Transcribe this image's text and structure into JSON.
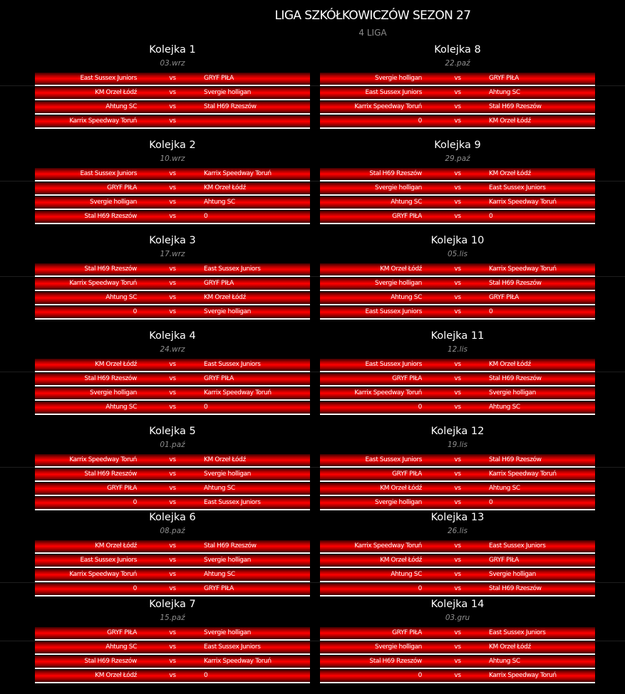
{
  "league": {
    "title": "LIGA SZKÓŁKOWICZÓW SEZON 27",
    "subtitle": "4 LIGA"
  },
  "vs_label": "vs",
  "rounds": [
    {
      "title": "Kolejka 1",
      "date": "03.wrz",
      "matches": [
        {
          "home": "East Sussex Juniors",
          "away": "GRYF PIŁA"
        },
        {
          "home": "KM Orzeł Łódź",
          "away": "Svergie holligan"
        },
        {
          "home": "Ahtung SC",
          "away": "Stal H69 Rzeszów"
        },
        {
          "home": "Karrix Speedway Toruń",
          "away": ""
        }
      ]
    },
    {
      "title": "Kolejka 2",
      "date": "10.wrz",
      "matches": [
        {
          "home": "East Sussex Juniors",
          "away": "Karrix Speedway Toruń"
        },
        {
          "home": "GRYF PIŁA",
          "away": "KM Orzeł Łódź"
        },
        {
          "home": "Svergie holligan",
          "away": "Ahtung SC"
        },
        {
          "home": "Stal H69 Rzeszów",
          "away": "0"
        }
      ]
    },
    {
      "title": "Kolejka 3",
      "date": "17.wrz",
      "matches": [
        {
          "home": "Stal H69 Rzeszów",
          "away": "East Sussex Juniors"
        },
        {
          "home": "Karrix Speedway Toruń",
          "away": "GRYF PIŁA"
        },
        {
          "home": "Ahtung SC",
          "away": "KM Orzeł Łódź"
        },
        {
          "home": "0",
          "away": "Svergie holligan"
        }
      ]
    },
    {
      "title": "Kolejka 4",
      "date": "24.wrz",
      "matches": [
        {
          "home": "KM Orzeł Łódź",
          "away": "East Sussex Juniors"
        },
        {
          "home": "Stal H69 Rzeszów",
          "away": "GRYF PIŁA"
        },
        {
          "home": "Svergie holligan",
          "away": "Karrix Speedway Toruń"
        },
        {
          "home": "Ahtung SC",
          "away": "0"
        }
      ]
    },
    {
      "title": "Kolejka 5",
      "date": "01.paź",
      "matches": [
        {
          "home": "Karrix Speedway Toruń",
          "away": "KM Orzeł Łódź"
        },
        {
          "home": "Stal H69 Rzeszów",
          "away": "Svergie holligan"
        },
        {
          "home": "GRYF PIŁA",
          "away": "Ahtung SC"
        },
        {
          "home": "0",
          "away": "East Sussex Juniors"
        }
      ]
    },
    {
      "title": "Kolejka 6",
      "date": "08.paź",
      "matches": [
        {
          "home": "KM Orzeł Łódź",
          "away": "Stal H69 Rzeszów"
        },
        {
          "home": "East Sussex Juniors",
          "away": "Svergie holligan"
        },
        {
          "home": "Karrix Speedway Toruń",
          "away": "Ahtung SC"
        },
        {
          "home": "0",
          "away": "GRYF PIŁA"
        }
      ]
    },
    {
      "title": "Kolejka 7",
      "date": "15.paź",
      "matches": [
        {
          "home": "GRYF PIŁA",
          "away": "Svergie holligan"
        },
        {
          "home": "Ahtung SC",
          "away": "East Sussex Juniors"
        },
        {
          "home": "Stal H69 Rzeszów",
          "away": "Karrix Speedway Toruń"
        },
        {
          "home": "KM Orzeł Łódź",
          "away": "0"
        }
      ]
    },
    {
      "title": "Kolejka 8",
      "date": "22.paź",
      "matches": [
        {
          "home": "Svergie holligan",
          "away": "GRYF PIŁA"
        },
        {
          "home": "East Sussex Juniors",
          "away": "Ahtung SC"
        },
        {
          "home": "Karrix Speedway Toruń",
          "away": "Stal H69 Rzeszów"
        },
        {
          "home": "0",
          "away": "KM Orzeł Łódź"
        }
      ]
    },
    {
      "title": "Kolejka 9",
      "date": "29.paź",
      "matches": [
        {
          "home": "Stal H69 Rzeszów",
          "away": "KM Orzeł Łódź"
        },
        {
          "home": "Svergie holligan",
          "away": "East Sussex Juniors"
        },
        {
          "home": "Ahtung SC",
          "away": "Karrix Speedway Toruń"
        },
        {
          "home": "GRYF PIŁA",
          "away": "0"
        }
      ]
    },
    {
      "title": "Kolejka 10",
      "date": "05.lis",
      "matches": [
        {
          "home": "KM Orzeł Łódź",
          "away": "Karrix Speedway Toruń"
        },
        {
          "home": "Svergie holligan",
          "away": "Stal H69 Rzeszów"
        },
        {
          "home": "Ahtung SC",
          "away": "GRYF PIŁA"
        },
        {
          "home": "East Sussex Juniors",
          "away": "0"
        }
      ]
    },
    {
      "title": "Kolejka 11",
      "date": "12.lis",
      "matches": [
        {
          "home": "East Sussex Juniors",
          "away": "KM Orzeł Łódź"
        },
        {
          "home": "GRYF PIŁA",
          "away": "Stal H69 Rzeszów"
        },
        {
          "home": "Karrix Speedway Toruń",
          "away": "Svergie holligan"
        },
        {
          "home": "0",
          "away": "Ahtung SC"
        }
      ]
    },
    {
      "title": "Kolejka 12",
      "date": "19.lis",
      "matches": [
        {
          "home": "East Sussex Juniors",
          "away": "Stal H69 Rzeszów"
        },
        {
          "home": "GRYF PIŁA",
          "away": "Karrix Speedway Toruń"
        },
        {
          "home": "KM Orzeł Łódź",
          "away": "Ahtung SC"
        },
        {
          "home": "Svergie holligan",
          "away": "0"
        }
      ]
    },
    {
      "title": "Kolejka 13",
      "date": "26.lis",
      "matches": [
        {
          "home": "Karrix Speedway Toruń",
          "away": "East Sussex Juniors"
        },
        {
          "home": "KM Orzeł Łódź",
          "away": "GRYF PIŁA"
        },
        {
          "home": "Ahtung SC",
          "away": "Svergie holligan"
        },
        {
          "home": "0",
          "away": "Stal H69 Rzeszów"
        }
      ]
    },
    {
      "title": "Kolejka 14",
      "date": "03.gru",
      "matches": [
        {
          "home": "GRYF PIŁA",
          "away": "East Sussex Juniors"
        },
        {
          "home": "Svergie holligan",
          "away": "KM Orzeł Łódź"
        },
        {
          "home": "Stal H69 Rzeszów",
          "away": "Ahtung SC"
        },
        {
          "home": "0",
          "away": "Karrix Speedway Toruń"
        }
      ]
    }
  ]
}
